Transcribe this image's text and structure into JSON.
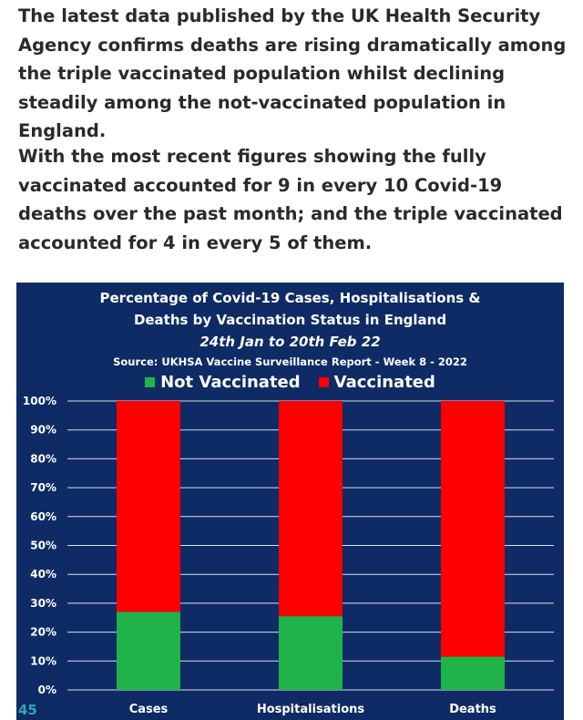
{
  "article": {
    "paragraph_1": "The latest data published by the UK Health Security Agency confirms deaths are rising dramatically among the triple vaccinated population whilst declining steadily among the not-vaccinated population in England.",
    "paragraph_2": "With the most recent figures showing the fully vaccinated accounted for 9 in every 10 Covid-19 deaths over the past month; and the triple vaccinated accounted for 4 in every 5 of them."
  },
  "page_number": "45",
  "colors": {
    "panel_background": "#0e2b66",
    "not_vaccinated": "#1fb34a",
    "vaccinated": "#ff0000",
    "gridline": "#ffffff",
    "page_number": "#2fa8b0"
  },
  "chart_data": {
    "type": "bar",
    "stacked": true,
    "title_lines": [
      "Percentage of Covid-19 Cases, Hospitalisations &",
      "Deaths by Vaccination Status in England",
      "24th Jan to 20th Feb 22"
    ],
    "source": "Source: UKHSA Vaccine Surveillance Report - Week 8 - 2022",
    "categories": [
      "Cases",
      "Hospitalisations",
      "Deaths"
    ],
    "series": [
      {
        "name": "Not Vaccinated",
        "values": [
          27,
          25.5,
          11.5
        ]
      },
      {
        "name": "Vaccinated",
        "values": [
          73,
          74.5,
          88.5
        ]
      }
    ],
    "y_ticks": [
      "0%",
      "10%",
      "20%",
      "30%",
      "40%",
      "50%",
      "60%",
      "70%",
      "80%",
      "90%",
      "100%"
    ],
    "ylim": [
      0,
      100
    ],
    "grid": true,
    "legend_position": "top"
  }
}
